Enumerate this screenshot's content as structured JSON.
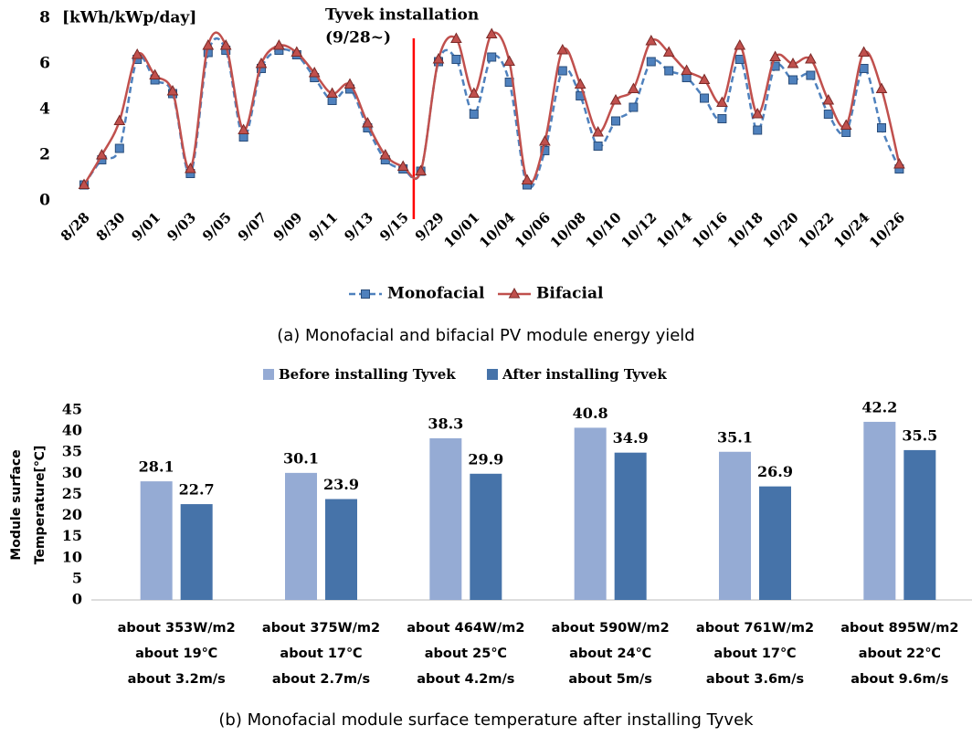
{
  "chart_data": [
    {
      "type": "line",
      "y_unit": "[kWh/kWp/day]",
      "caption": "(a) Monofacial and bifacial PV module energy yield",
      "annotation": {
        "text": [
          "Tyvek installation",
          "(9/28~)"
        ],
        "color": "#ff0000"
      },
      "categories": [
        "8/28",
        null,
        "8/30",
        null,
        "9/01",
        null,
        "9/03",
        null,
        "9/05",
        null,
        "9/07",
        null,
        "9/09",
        null,
        "9/11",
        null,
        "9/13",
        null,
        "9/15",
        null,
        "9/29",
        null,
        "10/01",
        null,
        "10/04",
        null,
        "10/06",
        null,
        "10/08",
        null,
        "10/10",
        null,
        "10/12",
        null,
        "10/14",
        null,
        "10/16",
        null,
        "10/18",
        null,
        "10/20",
        null,
        "10/22",
        null,
        "10/24",
        null,
        "10/26"
      ],
      "series": [
        {
          "name": "Monofacial",
          "color": "#4f81bd",
          "marker": "square",
          "dashed": true,
          "values": [
            0.7,
            1.8,
            2.3,
            6.2,
            5.3,
            4.7,
            1.2,
            6.5,
            6.6,
            2.8,
            5.8,
            6.6,
            6.4,
            5.4,
            4.4,
            4.9,
            3.2,
            1.8,
            1.4,
            1.3,
            6.1,
            6.2,
            3.8,
            6.3,
            5.2,
            0.7,
            2.2,
            5.7,
            4.6,
            2.4,
            3.5,
            4.1,
            6.1,
            5.7,
            5.4,
            4.5,
            3.6,
            6.2,
            3.1,
            5.9,
            5.3,
            5.5,
            3.8,
            3.0,
            5.8,
            3.2,
            1.4
          ]
        },
        {
          "name": "Bifacial",
          "color": "#c0504d",
          "marker": "triangle",
          "dashed": false,
          "values": [
            0.7,
            2.0,
            3.5,
            6.4,
            5.5,
            4.8,
            1.4,
            6.8,
            6.8,
            3.1,
            6.0,
            6.8,
            6.5,
            5.6,
            4.7,
            5.1,
            3.4,
            2.0,
            1.5,
            1.3,
            6.2,
            7.1,
            4.7,
            7.3,
            6.1,
            0.9,
            2.6,
            6.6,
            5.1,
            3.0,
            4.4,
            4.9,
            7.0,
            6.5,
            5.7,
            5.3,
            4.3,
            6.8,
            3.8,
            6.3,
            6.0,
            6.2,
            4.4,
            3.3,
            6.5,
            4.9,
            1.6
          ]
        }
      ],
      "ylim": [
        0,
        8
      ],
      "yticks": [
        0,
        2,
        4,
        6,
        8
      ],
      "grid": false
    },
    {
      "type": "bar",
      "y_label": [
        "Module surface",
        "Temperature[℃]"
      ],
      "caption": "(b) Monofacial module surface temperature after installing Tyvek",
      "categories": [
        [
          "about 353W/m2",
          "about 19℃",
          "about 3.2m/s"
        ],
        [
          "about 375W/m2",
          "about 17℃",
          "about 2.7m/s"
        ],
        [
          "about 464W/m2",
          "about 25℃",
          "about 4.2m/s"
        ],
        [
          "about 590W/m2",
          "about 24℃",
          "about 5m/s"
        ],
        [
          "about 761W/m2",
          "about 17℃",
          "about 3.6m/s"
        ],
        [
          "about 895W/m2",
          "about 22℃",
          "about 9.6m/s"
        ]
      ],
      "series": [
        {
          "name": "Before installing Tyvek",
          "color": "#95abd4",
          "values": [
            28.1,
            30.1,
            38.3,
            40.8,
            35.1,
            42.2
          ]
        },
        {
          "name": "After installing Tyvek",
          "color": "#4673a9",
          "values": [
            22.7,
            23.9,
            29.9,
            34.9,
            26.9,
            35.5
          ]
        }
      ],
      "ylim": [
        0,
        45
      ],
      "yticks": [
        0,
        5,
        10,
        15,
        20,
        25,
        30,
        35,
        40,
        45
      ],
      "grid": false
    }
  ]
}
